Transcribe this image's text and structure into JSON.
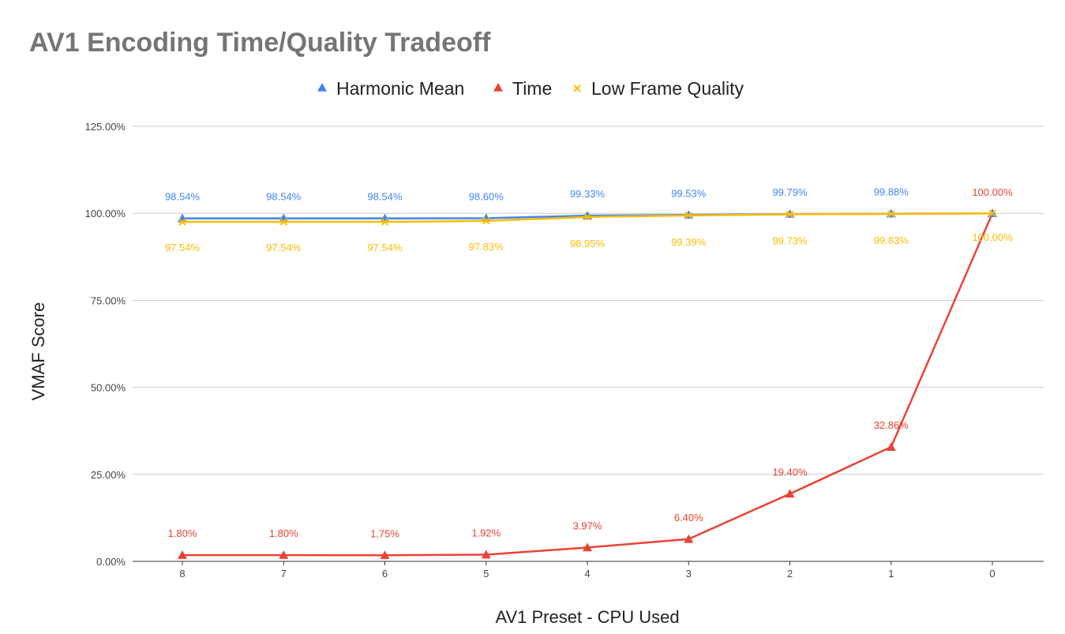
{
  "chart_data": {
    "type": "line",
    "title": "AV1 Encoding Time/Quality Tradeoff",
    "xlabel": "AV1 Preset - CPU Used",
    "ylabel": "VMAF Score",
    "categories": [
      "8",
      "7",
      "6",
      "5",
      "4",
      "3",
      "2",
      "1",
      "0"
    ],
    "ylim": [
      0,
      125
    ],
    "yticks": [
      "0.00%",
      "25.00%",
      "50.00%",
      "75.00%",
      "100.00%",
      "125.00%"
    ],
    "grid": true,
    "legend_position": "top",
    "series": [
      {
        "name": "Harmonic Mean",
        "color": "#4285f4",
        "marker": "triangle",
        "values": [
          98.54,
          98.54,
          98.54,
          98.6,
          99.33,
          99.53,
          99.79,
          99.88,
          100.0
        ],
        "labels": [
          "98.54%",
          "98.54%",
          "98.54%",
          "98.60%",
          "99.33%",
          "99.53%",
          "99.79%",
          "99.88%",
          ""
        ],
        "label_position": "above"
      },
      {
        "name": "Time",
        "color": "#ea4335",
        "marker": "triangle",
        "values": [
          1.8,
          1.8,
          1.75,
          1.92,
          3.97,
          6.4,
          19.4,
          32.86,
          100.0
        ],
        "labels": [
          "1.80%",
          "1.80%",
          "1.75%",
          "1.92%",
          "3.97%",
          "6.40%",
          "19.40%",
          "32.86%",
          "100.00%"
        ],
        "label_position": "above"
      },
      {
        "name": "Low Frame Quality",
        "color": "#fbbc04",
        "marker": "x",
        "values": [
          97.54,
          97.54,
          97.54,
          97.83,
          98.95,
          99.39,
          99.73,
          99.83,
          100.0
        ],
        "labels": [
          "97.54%",
          "97.54%",
          "97.54%",
          "97.83%",
          "98.95%",
          "99.39%",
          "99.73%",
          "99.83%",
          "100.00%"
        ],
        "label_position": "below"
      }
    ]
  }
}
